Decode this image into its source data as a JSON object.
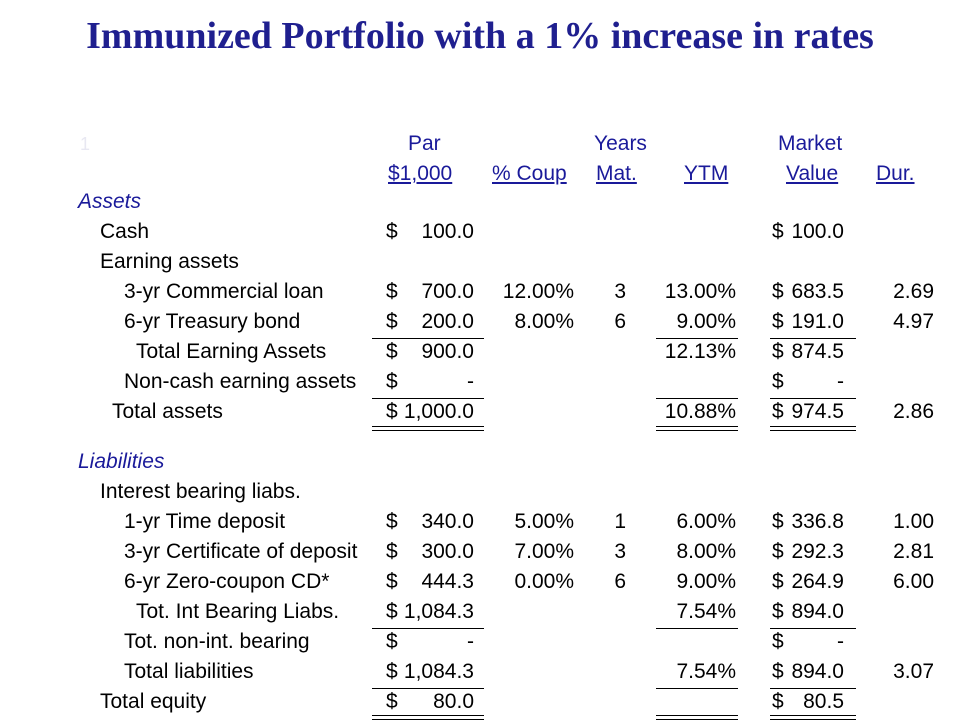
{
  "title": "Immunized Portfolio with a 1% increase in rates",
  "marker": "1",
  "headers": {
    "par_top": "Par",
    "par_bottom": "$1,000",
    "coupon": "% Coup",
    "years_top": "Years",
    "years_bottom": "Mat.",
    "ytm": "YTM",
    "mv_top": "Market",
    "mv_bottom": "Value",
    "dur": "Dur."
  },
  "sections": {
    "assets": "Assets",
    "liabilities": "Liabilities"
  },
  "rows": [
    {
      "label": "Cash",
      "indent": 1,
      "par": "100.0",
      "coupon": "",
      "years": "",
      "ytm": "",
      "mv": "100.0",
      "dur": ""
    },
    {
      "label": "Earning assets",
      "indent": 1,
      "par": "",
      "coupon": "",
      "years": "",
      "ytm": "",
      "mv": "",
      "dur": ""
    },
    {
      "label": "3-yr Commercial loan",
      "indent": 2,
      "par": "700.0",
      "coupon": "12.00%",
      "years": "3",
      "ytm": "13.00%",
      "mv": "683.5",
      "dur": "2.69"
    },
    {
      "label": "6-yr Treasury bond",
      "indent": 2,
      "par": "200.0",
      "coupon": "8.00%",
      "years": "6",
      "ytm": "9.00%",
      "mv": "191.0",
      "dur": "4.97"
    },
    {
      "label": "Total Earning Assets",
      "indent": 3,
      "par": "900.0",
      "coupon": "",
      "years": "",
      "ytm": "12.13%",
      "mv": "874.5",
      "dur": ""
    },
    {
      "label": "Non-cash earning assets",
      "indent": 2,
      "par": "-",
      "coupon": "",
      "years": "",
      "ytm": "",
      "mv": "-",
      "dur": ""
    },
    {
      "label": "Total assets",
      "indent": 1.5,
      "par": "1,000.0",
      "coupon": "",
      "years": "",
      "ytm": "10.88%",
      "mv": "974.5",
      "dur": "2.86"
    },
    {
      "label": "Interest bearing liabs.",
      "indent": 1,
      "par": "",
      "coupon": "",
      "years": "",
      "ytm": "",
      "mv": "",
      "dur": ""
    },
    {
      "label": "1-yr Time deposit",
      "indent": 2,
      "par": "340.0",
      "coupon": "5.00%",
      "years": "1",
      "ytm": "6.00%",
      "mv": "336.8",
      "dur": "1.00"
    },
    {
      "label": "3-yr Certificate of deposit",
      "indent": 2,
      "par": "300.0",
      "coupon": "7.00%",
      "years": "3",
      "ytm": "8.00%",
      "mv": "292.3",
      "dur": "2.81"
    },
    {
      "label": "6-yr Zero-coupon CD*",
      "indent": 2,
      "par": "444.3",
      "coupon": "0.00%",
      "years": "6",
      "ytm": "9.00%",
      "mv": "264.9",
      "dur": "6.00"
    },
    {
      "label": "Tot. Int Bearing Liabs.",
      "indent": 3,
      "par": "1,084.3",
      "coupon": "",
      "years": "",
      "ytm": "7.54%",
      "mv": "894.0",
      "dur": ""
    },
    {
      "label": "Tot. non-int. bearing",
      "indent": 2,
      "par": "-",
      "coupon": "",
      "years": "",
      "ytm": "",
      "mv": "-",
      "dur": ""
    },
    {
      "label": "Total liabilities",
      "indent": 2,
      "par": "1,084.3",
      "coupon": "",
      "years": "",
      "ytm": "7.54%",
      "mv": "894.0",
      "dur": "3.07"
    },
    {
      "label": "Total equity",
      "indent": 1,
      "par": "80.0",
      "coupon": "",
      "years": "",
      "ytm": "",
      "mv": "80.5",
      "dur": ""
    }
  ],
  "currency": "$"
}
